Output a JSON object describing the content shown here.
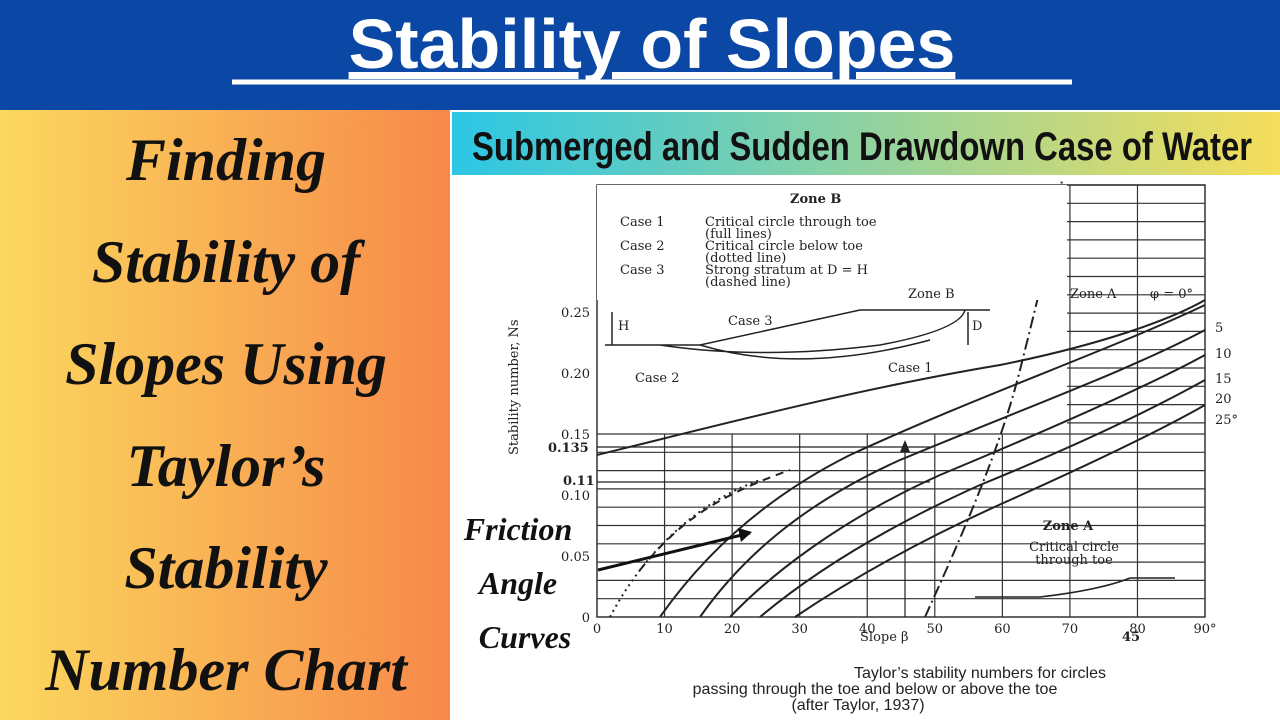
{
  "header": {
    "title": "Stability of Slopes"
  },
  "left_panel": {
    "lines": [
      "Finding",
      "Stability of",
      "Slopes Using",
      "Taylor’s",
      "Stability",
      "Number Chart"
    ]
  },
  "right_panel": {
    "header": "Submerged and Sudden Drawdown Case of Water",
    "figure": {
      "zone_b_title": "Zone B",
      "legend": [
        [
          "Case 1",
          "Critical circle through toe",
          "(full lines)"
        ],
        [
          "Case 2",
          "Critical circle below toe",
          "(dotted line)"
        ],
        [
          "Case 3",
          "Strong stratum at D = H",
          "(dashed line)"
        ]
      ],
      "zone_b_label": "Zone B",
      "zone_a_label": "Zone A",
      "phi_labels": [
        "φ = 0°",
        "5",
        "10",
        "15",
        "20",
        "25°"
      ],
      "sketch_labels": [
        "H",
        "D",
        "Case 3",
        "Case 1",
        "Case 2"
      ],
      "y_axis_title": "Stability number, Ns",
      "y_tick_labels": [
        "0",
        "0.05",
        "0.10",
        "0.15",
        "0.20",
        "0.25"
      ],
      "x_tick_labels": [
        "0",
        "10",
        "20",
        "30",
        "40",
        "50",
        "60",
        "70",
        "80",
        "90°"
      ],
      "x_axis_title": "Slope β",
      "markers": [
        "0.135",
        "0.11",
        "45"
      ],
      "zone_a_box": [
        "Zone A",
        "Critical circle",
        "through toe"
      ],
      "caption": [
        "Taylor’s stability numbers for circles",
        "passing through the toe and below or above the toe",
        "(after Taylor, 1937)"
      ],
      "overlay": [
        "Friction",
        "Angle",
        "Curves"
      ]
    }
  }
}
